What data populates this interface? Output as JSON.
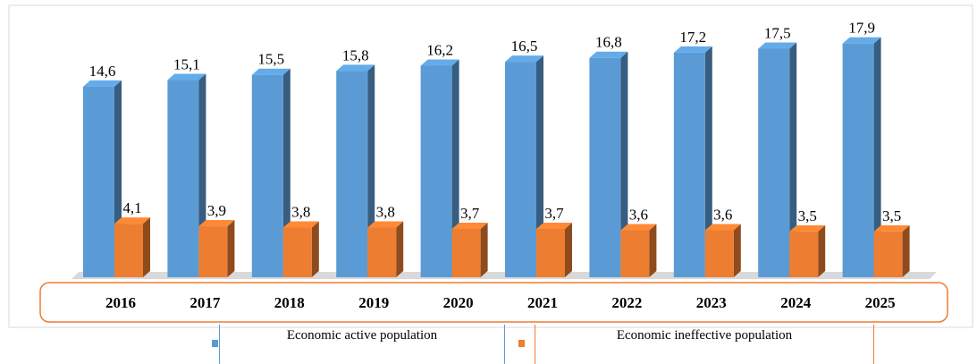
{
  "chart_data": {
    "type": "bar3d",
    "categories": [
      "2016",
      "2017",
      "2018",
      "2019",
      "2020",
      "2021",
      "2022",
      "2023",
      "2024",
      "2025"
    ],
    "series": [
      {
        "name": "Economic active population",
        "color": "#5b9bd5",
        "values": [
          14.6,
          15.1,
          15.5,
          15.8,
          16.2,
          16.5,
          16.8,
          17.2,
          17.5,
          17.9
        ],
        "value_labels": [
          "14,6",
          "15,1",
          "15,5",
          "15,8",
          "16,2",
          "16,5",
          "16,8",
          "17,2",
          "17,5",
          "17,9"
        ]
      },
      {
        "name": "Economic ineffective population",
        "color": "#ed7d31",
        "values": [
          4.1,
          3.9,
          3.8,
          3.8,
          3.7,
          3.7,
          3.6,
          3.6,
          3.5,
          3.5
        ],
        "value_labels": [
          "4,1",
          "3,9",
          "3,8",
          "3,8",
          "3,7",
          "3,7",
          "3,6",
          "3,6",
          "3,5",
          "3,5"
        ]
      }
    ]
  }
}
